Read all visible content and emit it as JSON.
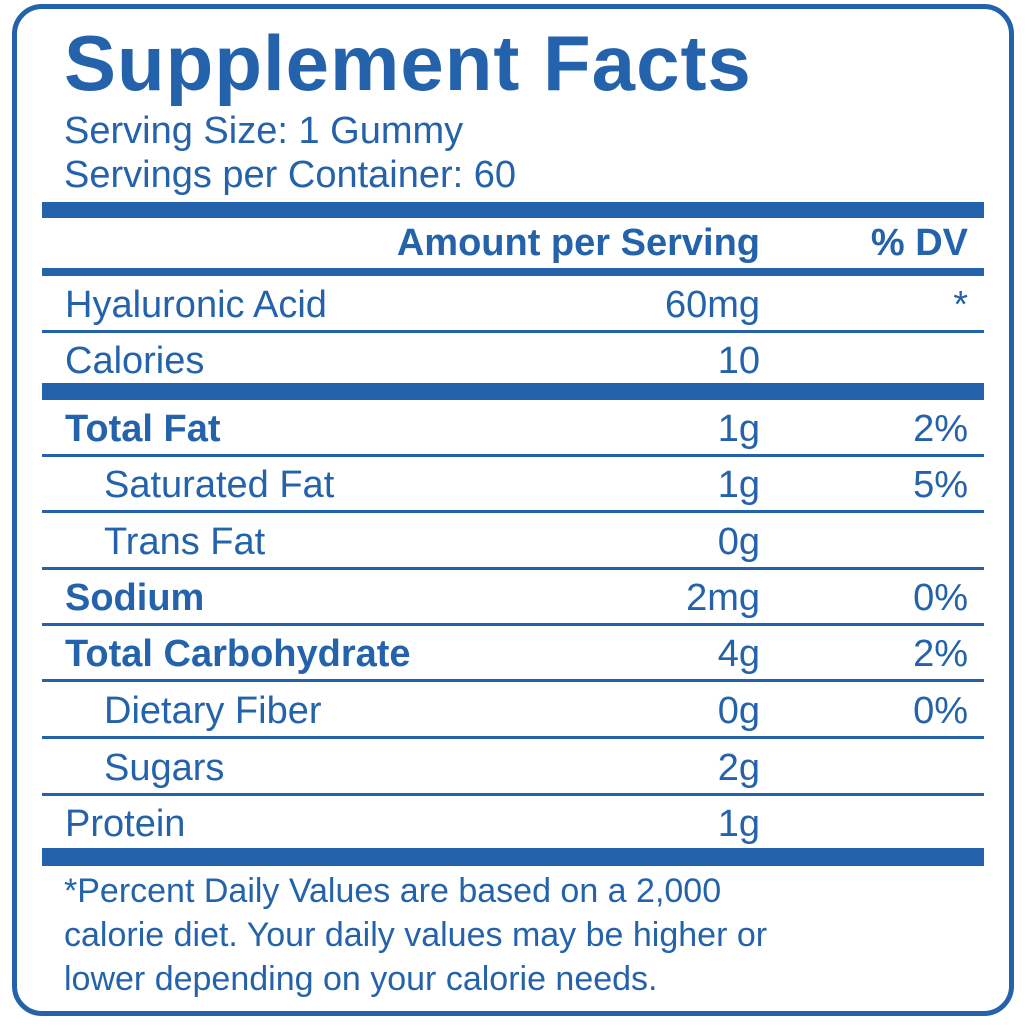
{
  "title": "Supplement Facts",
  "serving_size": "Serving Size: 1 Gummy",
  "servings_per_container": "Servings per Container: 60",
  "header": {
    "amount": "Amount per Serving",
    "dv": "% DV"
  },
  "rows": [
    {
      "name": "Hyaluronic Acid",
      "amount": "60mg",
      "dv": "*"
    },
    {
      "name": "Calories",
      "amount": "10",
      "dv": null
    },
    {
      "name": "Total Fat",
      "amount": "1g",
      "dv": "2%"
    },
    {
      "name": "Saturated Fat",
      "amount": "1g",
      "dv": "5%"
    },
    {
      "name": "Trans Fat",
      "amount": "0g",
      "dv": null
    },
    {
      "name": "Sodium",
      "amount": "2mg",
      "dv": "0%"
    },
    {
      "name": "Total Carbohydrate",
      "amount": "4g",
      "dv": "2%"
    },
    {
      "name": "Dietary Fiber",
      "amount": "0g",
      "dv": "0%"
    },
    {
      "name": "Sugars",
      "amount": "2g",
      "dv": null
    },
    {
      "name": "Protein",
      "amount": "1g",
      "dv": null
    }
  ],
  "footnote": [
    "*Percent Daily Values are based on a 2,000",
    "calorie diet. Your daily values may be higher or",
    "lower depending on your calorie needs."
  ]
}
